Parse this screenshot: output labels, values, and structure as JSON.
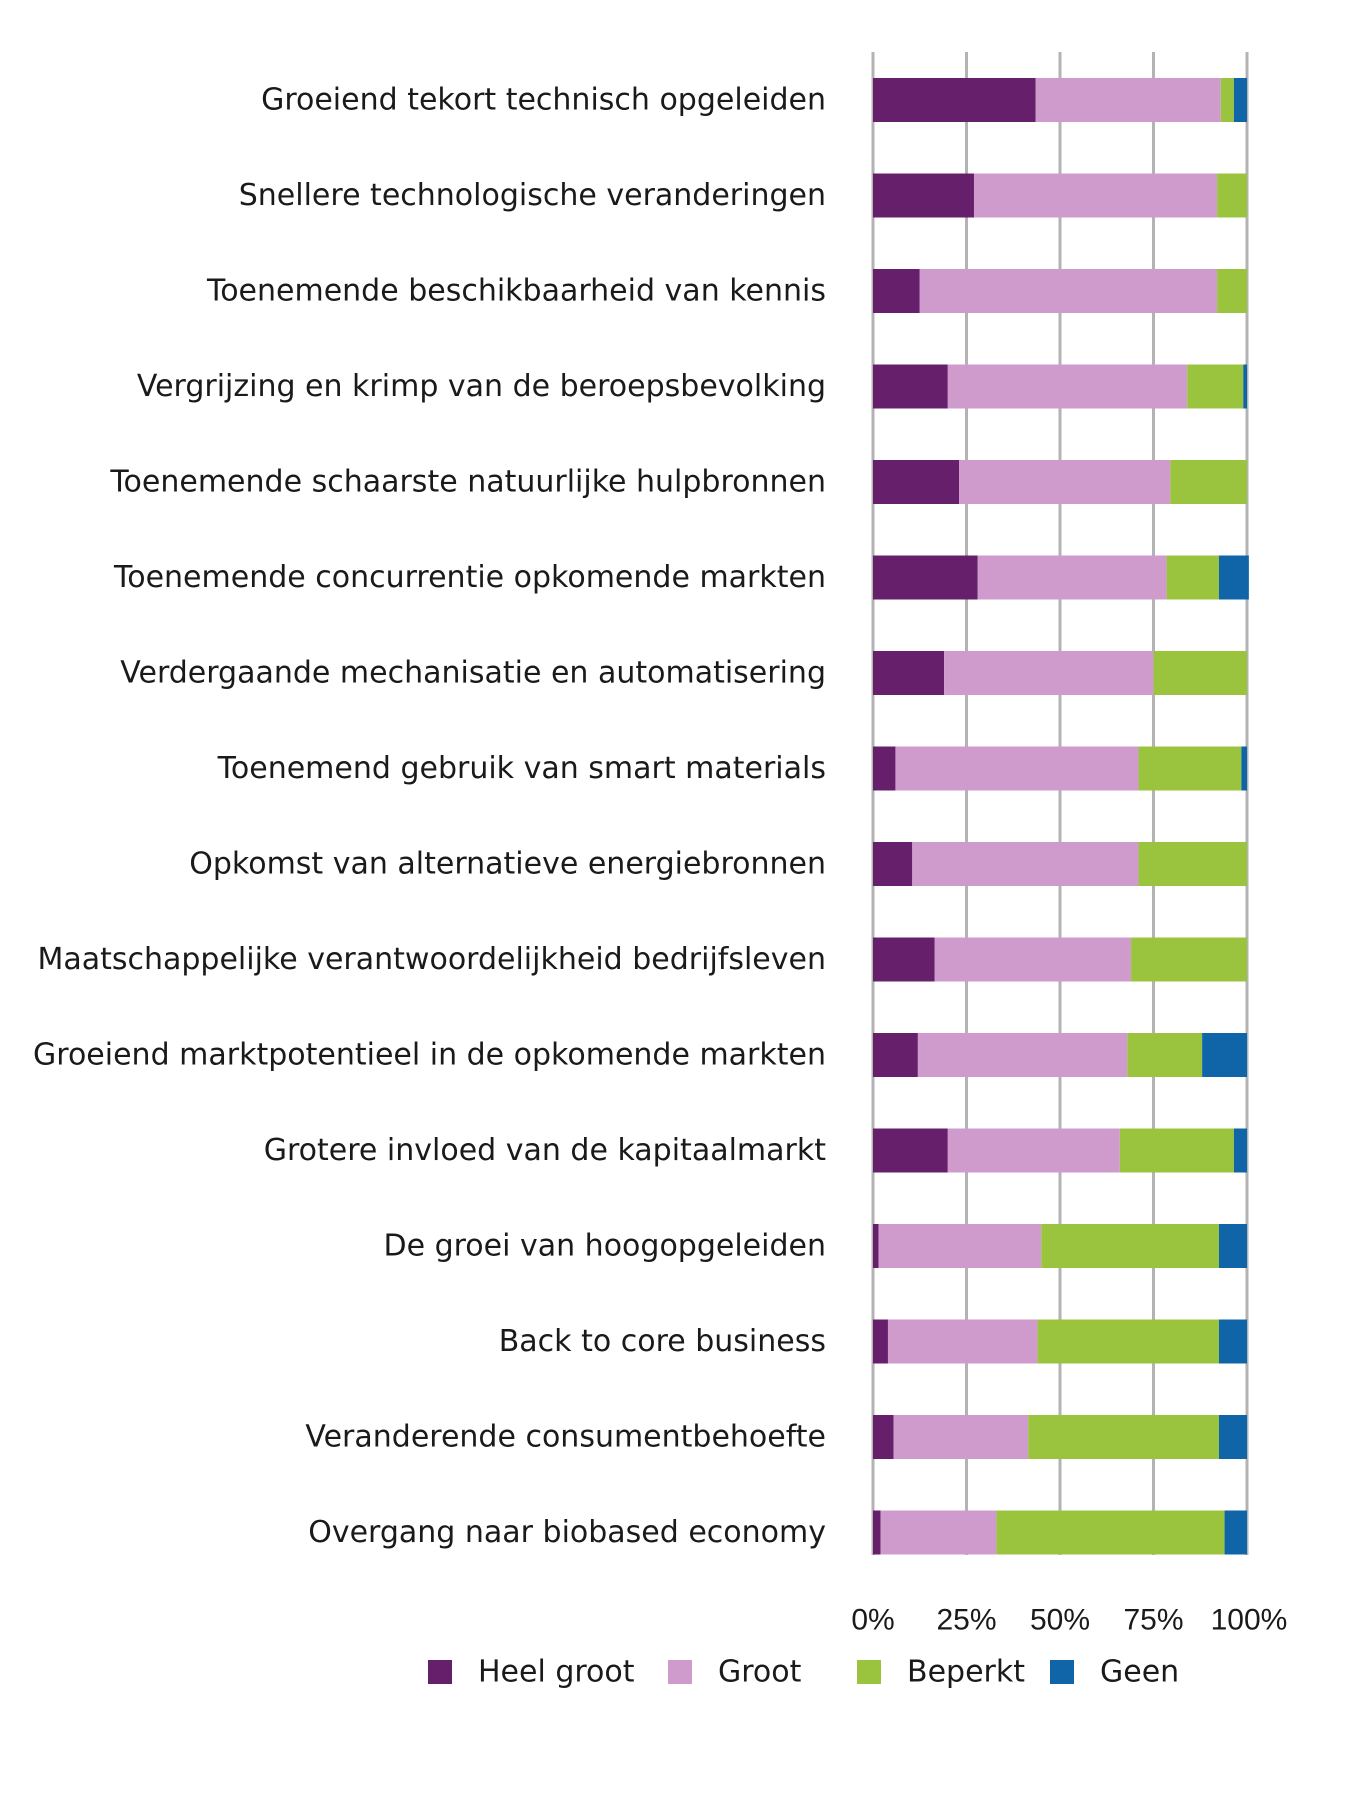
{
  "chart_data": {
    "type": "bar",
    "orientation": "horizontal",
    "stacked": true,
    "percent": true,
    "categories": [
      "Groeiend tekort technisch opgeleiden",
      "Snellere technologische veranderingen",
      "Toenemende beschikbaarheid van kennis",
      "Vergrijzing en krimp van de beroepsbevolking",
      "Toenemende schaarste natuurlijke hulpbronnen",
      "Toenemende concurrentie opkomende markten",
      "Verdergaande mechanisatie en automatisering",
      "Toenemend gebruik van smart materials",
      "Opkomst van alternatieve energiebronnen",
      "Maatschappelijke verantwoordelijkheid bedrijfsleven",
      "Groeiend marktpotentieel in de opkomende markten",
      "Grotere invloed van de kapitaalmarkt",
      "De groei van hoogopgeleiden",
      "Back to core business",
      "Veranderende consumentbehoefte",
      "Overgang naar biobased economy"
    ],
    "series": [
      {
        "name": "Heel groot",
        "color": "#66206b",
        "values": [
          43.5,
          27,
          12.5,
          20,
          23,
          28,
          19,
          6,
          10.5,
          16.5,
          12,
          20,
          1.5,
          4,
          5.5,
          2
        ]
      },
      {
        "name": "Groot",
        "color": "#cf9bcc",
        "values": [
          49.5,
          65,
          79.5,
          64,
          56.5,
          50.5,
          56,
          65,
          60.5,
          52.5,
          56,
          46,
          43.5,
          40,
          36,
          31
        ]
      },
      {
        "name": "Beperkt",
        "color": "#9bc43e",
        "values": [
          3.5,
          8,
          8,
          15,
          20.5,
          14,
          25,
          27.5,
          29,
          31,
          20,
          30.5,
          47.5,
          48.5,
          51,
          61
        ]
      },
      {
        "name": "Geen",
        "color": "#0f65a8",
        "values": [
          3.5,
          0,
          0,
          1,
          0,
          8,
          0,
          1.5,
          0,
          0,
          12,
          3.5,
          7.5,
          7.5,
          7.5,
          6
        ]
      }
    ],
    "xticks": [
      "0%",
      "25%",
      "50%",
      "75%",
      "100%"
    ],
    "xlim": [
      0,
      100
    ],
    "grid": true,
    "gridColor": "#b3b3b3",
    "legend": "bottom",
    "title": "",
    "xlabel": "",
    "ylabel": ""
  }
}
